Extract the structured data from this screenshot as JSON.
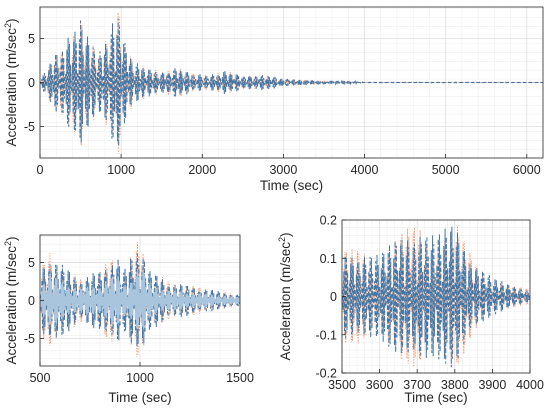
{
  "chart_data": [
    {
      "type": "line",
      "xlabel": "Time (sec)",
      "ylabel_main": "Acceleration (m/sec",
      "ylabel_sup": "2",
      "ylabel_tail": ")",
      "xlim": [
        0,
        6200
      ],
      "ylim": [
        -8.6,
        8.6
      ],
      "xticks": [
        0,
        1000,
        2000,
        3000,
        4000,
        5000,
        6000
      ],
      "xtick_labels": [
        "0",
        "1000",
        "2000",
        "3000",
        "4000",
        "5000",
        "6000"
      ],
      "yticks": [
        -5,
        0,
        5
      ],
      "ytick_labels": [
        "-5",
        "0",
        "5"
      ],
      "grid": true,
      "colors": {
        "dotted": "#f0926a",
        "dashed": "#3f76a8",
        "light": "#a9c5de"
      },
      "series_style": [
        "dotted",
        "dashed"
      ],
      "envelope": [
        [
          0,
          0.2
        ],
        [
          150,
          3.0
        ],
        [
          300,
          4.5
        ],
        [
          420,
          6.5
        ],
        [
          500,
          7.5
        ],
        [
          600,
          5.5
        ],
        [
          700,
          3.5
        ],
        [
          800,
          4.5
        ],
        [
          900,
          7.5
        ],
        [
          1000,
          8.5
        ],
        [
          1050,
          4.5
        ],
        [
          1150,
          2.5
        ],
        [
          1300,
          1.8
        ],
        [
          1500,
          1.2
        ],
        [
          1700,
          1.8
        ],
        [
          1900,
          1.0
        ],
        [
          2100,
          0.9
        ],
        [
          2300,
          1.4
        ],
        [
          2500,
          0.8
        ],
        [
          2800,
          0.9
        ],
        [
          3000,
          0.45
        ],
        [
          3500,
          0.2
        ],
        [
          3800,
          0.2
        ],
        [
          4000,
          0.03
        ],
        [
          6200,
          0.03
        ]
      ]
    },
    {
      "type": "line",
      "xlabel": "Time (sec)",
      "ylabel_main": "Acceleration (m/sec",
      "ylabel_sup": "2",
      "ylabel_tail": ")",
      "xlim": [
        500,
        1500
      ],
      "ylim": [
        -8.6,
        8.6
      ],
      "xticks": [
        500,
        1000,
        1500
      ],
      "xtick_labels": [
        "500",
        "1000",
        "1500"
      ],
      "yticks": [
        -5,
        0,
        5
      ],
      "ytick_labels": [
        "-5",
        "0",
        "5"
      ],
      "grid": true,
      "colors": {
        "dotted": "#f0926a",
        "dashed": "#3f76a8",
        "light": "#a9c5de"
      },
      "series_style": [
        "dotted",
        "dashed",
        "light"
      ],
      "envelope": [
        [
          500,
          4.0
        ],
        [
          550,
          6.5
        ],
        [
          600,
          5.0
        ],
        [
          700,
          3.0
        ],
        [
          800,
          4.0
        ],
        [
          880,
          6.5
        ],
        [
          920,
          4.0
        ],
        [
          1000,
          8.5
        ],
        [
          1050,
          4.0
        ],
        [
          1150,
          2.5
        ],
        [
          1300,
          1.8
        ],
        [
          1400,
          1.2
        ],
        [
          1500,
          0.8
        ]
      ]
    },
    {
      "type": "line",
      "xlabel": "Time (sec)",
      "ylabel_main": "Acceleration (m/sec",
      "ylabel_sup": "2",
      "ylabel_tail": ")",
      "xlim": [
        3500,
        4000
      ],
      "ylim": [
        -0.2,
        0.2
      ],
      "xticks": [
        3500,
        3600,
        3700,
        3800,
        3900,
        4000
      ],
      "xtick_labels": [
        "3500",
        "3600",
        "3700",
        "3800",
        "3900",
        "4000"
      ],
      "yticks": [
        -0.2,
        -0.1,
        0,
        0.1,
        0.2
      ],
      "ytick_labels": [
        "-0.2",
        "-0.1",
        "0",
        "0.1",
        "0.2"
      ],
      "grid": true,
      "colors": {
        "dotted": "#f0926a",
        "dashed": "#3f76a8",
        "light": "#a9c5de"
      },
      "series_style": [
        "dotted",
        "dashed"
      ],
      "envelope": [
        [
          3500,
          0.12
        ],
        [
          3550,
          0.13
        ],
        [
          3600,
          0.11
        ],
        [
          3650,
          0.16
        ],
        [
          3700,
          0.2
        ],
        [
          3750,
          0.16
        ],
        [
          3800,
          0.2
        ],
        [
          3850,
          0.1
        ],
        [
          3900,
          0.05
        ],
        [
          3950,
          0.03
        ],
        [
          4000,
          0.02
        ]
      ]
    }
  ]
}
